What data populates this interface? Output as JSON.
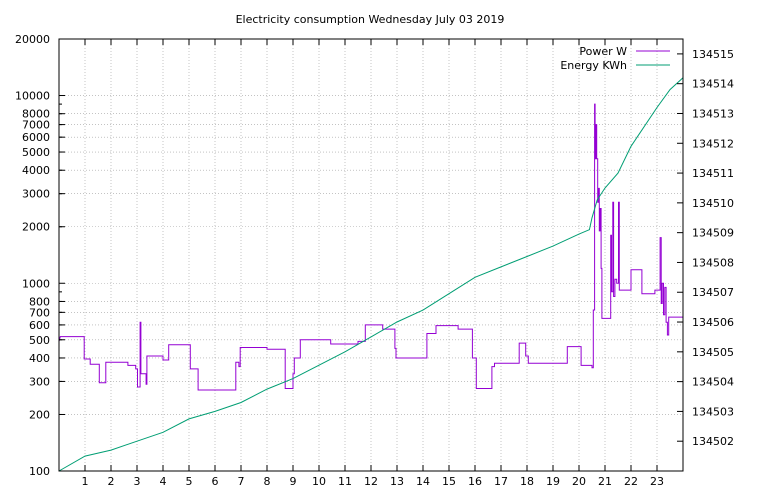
{
  "chart_data": {
    "type": "line",
    "title": "Electricity consumption Wednesday July 03 2019",
    "xlabel": "",
    "ylabel": "",
    "y2label": "",
    "x_ticks": [
      1,
      2,
      3,
      4,
      5,
      6,
      7,
      8,
      9,
      10,
      11,
      12,
      13,
      14,
      15,
      16,
      17,
      18,
      19,
      20,
      21,
      22,
      23
    ],
    "xlim": [
      0,
      24
    ],
    "y_scale": "log",
    "ylim": [
      100,
      20000
    ],
    "y_ticks": [
      {
        "value": 100,
        "label": "100"
      },
      {
        "value": 200,
        "label": "200"
      },
      {
        "value": 300,
        "label": "300"
      },
      {
        "value": 400,
        "label": "400"
      },
      {
        "value": 500,
        "label": "500"
      },
      {
        "value": 600,
        "label": "600"
      },
      {
        "value": 700,
        "label": "700"
      },
      {
        "value": 800,
        "label": "800"
      },
      {
        "value": 1000,
        "label": "1000"
      },
      {
        "value": 2000,
        "label": "2000"
      },
      {
        "value": 3000,
        "label": "3000"
      },
      {
        "value": 4000,
        "label": "4000"
      },
      {
        "value": 5000,
        "label": "5000"
      },
      {
        "value": 6000,
        "label": "6000"
      },
      {
        "value": 7000,
        "label": "7000"
      },
      {
        "value": 8000,
        "label": "8000"
      },
      {
        "value": 10000,
        "label": "10000"
      },
      {
        "value": 20000,
        "label": "20000"
      }
    ],
    "y2lim": [
      134501.0,
      134515.5
    ],
    "y2_ticks": [
      134502,
      134503,
      134504,
      134505,
      134506,
      134507,
      134508,
      134509,
      134510,
      134511,
      134512,
      134513,
      134514,
      134515
    ],
    "grid": true,
    "legend_position": "top-right",
    "series": [
      {
        "name": "Power W",
        "axis": "y1",
        "color": "#9400d3",
        "step": true,
        "points": [
          [
            0.0,
            490
          ],
          [
            0.05,
            520
          ],
          [
            0.97,
            520
          ],
          [
            0.97,
            395
          ],
          [
            1.2,
            395
          ],
          [
            1.2,
            370
          ],
          [
            1.55,
            370
          ],
          [
            1.55,
            295
          ],
          [
            1.8,
            295
          ],
          [
            1.8,
            380
          ],
          [
            2.65,
            380
          ],
          [
            2.65,
            365
          ],
          [
            2.95,
            365
          ],
          [
            2.95,
            350
          ],
          [
            3.02,
            350
          ],
          [
            3.02,
            280
          ],
          [
            3.12,
            280
          ],
          [
            3.12,
            620
          ],
          [
            3.15,
            620
          ],
          [
            3.15,
            330
          ],
          [
            3.35,
            330
          ],
          [
            3.35,
            290
          ],
          [
            3.38,
            290
          ],
          [
            3.38,
            410
          ],
          [
            4.0,
            410
          ],
          [
            4.0,
            390
          ],
          [
            4.22,
            390
          ],
          [
            4.22,
            470
          ],
          [
            5.05,
            470
          ],
          [
            5.05,
            350
          ],
          [
            5.35,
            350
          ],
          [
            5.35,
            270
          ],
          [
            6.8,
            270
          ],
          [
            6.8,
            380
          ],
          [
            6.92,
            380
          ],
          [
            6.92,
            360
          ],
          [
            6.97,
            360
          ],
          [
            6.97,
            455
          ],
          [
            8.0,
            455
          ],
          [
            8.0,
            445
          ],
          [
            8.7,
            445
          ],
          [
            8.7,
            275
          ],
          [
            9.0,
            275
          ],
          [
            9.0,
            330
          ],
          [
            9.05,
            330
          ],
          [
            9.05,
            400
          ],
          [
            9.28,
            400
          ],
          [
            9.28,
            500
          ],
          [
            10.45,
            500
          ],
          [
            10.45,
            475
          ],
          [
            11.5,
            475
          ],
          [
            11.5,
            490
          ],
          [
            11.78,
            490
          ],
          [
            11.78,
            600
          ],
          [
            12.45,
            600
          ],
          [
            12.45,
            570
          ],
          [
            12.92,
            570
          ],
          [
            12.92,
            450
          ],
          [
            12.96,
            450
          ],
          [
            12.96,
            400
          ],
          [
            14.15,
            400
          ],
          [
            14.15,
            540
          ],
          [
            14.5,
            540
          ],
          [
            14.5,
            595
          ],
          [
            15.35,
            595
          ],
          [
            15.35,
            570
          ],
          [
            15.9,
            570
          ],
          [
            15.9,
            400
          ],
          [
            16.05,
            400
          ],
          [
            16.05,
            275
          ],
          [
            16.65,
            275
          ],
          [
            16.65,
            360
          ],
          [
            16.75,
            360
          ],
          [
            16.75,
            375
          ],
          [
            17.7,
            375
          ],
          [
            17.7,
            480
          ],
          [
            17.95,
            480
          ],
          [
            17.95,
            410
          ],
          [
            18.05,
            410
          ],
          [
            18.05,
            375
          ],
          [
            19.55,
            375
          ],
          [
            19.55,
            460
          ],
          [
            20.08,
            460
          ],
          [
            20.08,
            365
          ],
          [
            20.5,
            365
          ],
          [
            20.5,
            355
          ],
          [
            20.55,
            355
          ],
          [
            20.55,
            720
          ],
          [
            20.6,
            720
          ],
          [
            20.6,
            9000
          ],
          [
            20.62,
            9000
          ],
          [
            20.62,
            4600
          ],
          [
            20.65,
            4600
          ],
          [
            20.65,
            7000
          ],
          [
            20.68,
            7000
          ],
          [
            20.68,
            4600
          ],
          [
            20.72,
            4600
          ],
          [
            20.72,
            2700
          ],
          [
            20.75,
            2700
          ],
          [
            20.75,
            3200
          ],
          [
            20.78,
            3200
          ],
          [
            20.78,
            1900
          ],
          [
            20.82,
            1900
          ],
          [
            20.82,
            2500
          ],
          [
            20.85,
            2500
          ],
          [
            20.85,
            1200
          ],
          [
            20.88,
            1200
          ],
          [
            20.88,
            650
          ],
          [
            21.22,
            650
          ],
          [
            21.22,
            1800
          ],
          [
            21.25,
            1800
          ],
          [
            21.25,
            900
          ],
          [
            21.3,
            900
          ],
          [
            21.3,
            2700
          ],
          [
            21.33,
            2700
          ],
          [
            21.33,
            850
          ],
          [
            21.38,
            850
          ],
          [
            21.38,
            1050
          ],
          [
            21.45,
            1050
          ],
          [
            21.45,
            1000
          ],
          [
            21.52,
            1000
          ],
          [
            21.52,
            2700
          ],
          [
            21.55,
            2700
          ],
          [
            21.55,
            920
          ],
          [
            22.0,
            920
          ],
          [
            22.0,
            1180
          ],
          [
            22.42,
            1180
          ],
          [
            22.42,
            880
          ],
          [
            22.92,
            880
          ],
          [
            22.92,
            920
          ],
          [
            23.12,
            920
          ],
          [
            23.12,
            1750
          ],
          [
            23.16,
            1750
          ],
          [
            23.16,
            780
          ],
          [
            23.2,
            780
          ],
          [
            23.2,
            1000
          ],
          [
            23.25,
            1000
          ],
          [
            23.25,
            680
          ],
          [
            23.3,
            680
          ],
          [
            23.3,
            950
          ],
          [
            23.35,
            950
          ],
          [
            23.35,
            620
          ],
          [
            23.4,
            620
          ],
          [
            23.4,
            530
          ],
          [
            23.45,
            530
          ],
          [
            23.45,
            660
          ],
          [
            24.0,
            660
          ]
        ]
      },
      {
        "name": "Energy KWh",
        "axis": "y2",
        "color": "#009e73",
        "step": false,
        "points": [
          [
            0.0,
            134501.0
          ],
          [
            1.0,
            134501.5
          ],
          [
            2.0,
            134501.7
          ],
          [
            3.0,
            134502.0
          ],
          [
            4.0,
            134502.3
          ],
          [
            5.0,
            134502.75
          ],
          [
            6.0,
            134503.0
          ],
          [
            7.0,
            134503.3
          ],
          [
            8.0,
            134503.75
          ],
          [
            9.0,
            134504.1
          ],
          [
            10.0,
            134504.55
          ],
          [
            11.0,
            134505.0
          ],
          [
            12.0,
            134505.5
          ],
          [
            13.0,
            134506.0
          ],
          [
            14.0,
            134506.4
          ],
          [
            15.0,
            134506.95
          ],
          [
            16.0,
            134507.5
          ],
          [
            17.0,
            134507.85
          ],
          [
            18.0,
            134508.2
          ],
          [
            19.0,
            134508.55
          ],
          [
            20.0,
            134508.95
          ],
          [
            20.4,
            134509.1
          ],
          [
            20.5,
            134509.5
          ],
          [
            20.7,
            134510.1
          ],
          [
            21.0,
            134510.5
          ],
          [
            21.5,
            134511.0
          ],
          [
            22.0,
            134511.9
          ],
          [
            23.0,
            134513.2
          ],
          [
            23.5,
            134513.8
          ],
          [
            24.0,
            134514.2
          ]
        ]
      }
    ]
  }
}
